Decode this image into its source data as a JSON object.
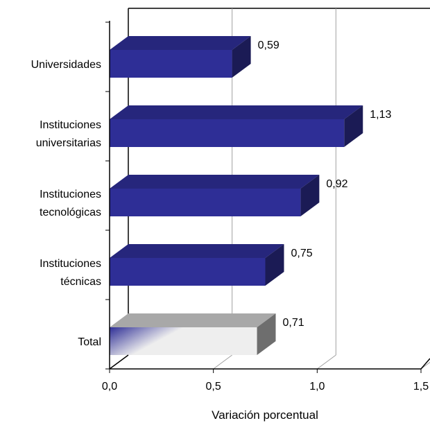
{
  "chart_data": {
    "type": "bar",
    "orientation": "horizontal",
    "style": "3d",
    "categories": [
      [
        "Universidades"
      ],
      [
        "Instituciones",
        "universitarias"
      ],
      [
        "Instituciones",
        "tecnológicas"
      ],
      [
        "Instituciones",
        "técnicas"
      ],
      [
        "Total"
      ]
    ],
    "values": [
      0.59,
      1.13,
      0.92,
      0.75,
      0.71
    ],
    "value_labels": [
      "0,59",
      "1,13",
      "0,92",
      "0,75",
      "0,71"
    ],
    "xlim": [
      0,
      1.5
    ],
    "xticks": [
      0,
      0.5,
      1.0,
      1.5
    ],
    "xtick_labels": [
      "0,0",
      "0,5",
      "1,0",
      "1,5"
    ],
    "xlabel": "Variación porcentual",
    "ylabel": "",
    "title": "",
    "grid": "vertical",
    "colors": {
      "bar_front": "#2e2e96",
      "bar_top": "#26267c",
      "bar_side": "#1b1b55",
      "total_light": "#eeeeee",
      "total_dark": "#2e2e96",
      "total_top": "#a8a8a8",
      "total_side": "#6e6e6e",
      "grid": "#a0a0a0",
      "axis": "#000000"
    }
  }
}
